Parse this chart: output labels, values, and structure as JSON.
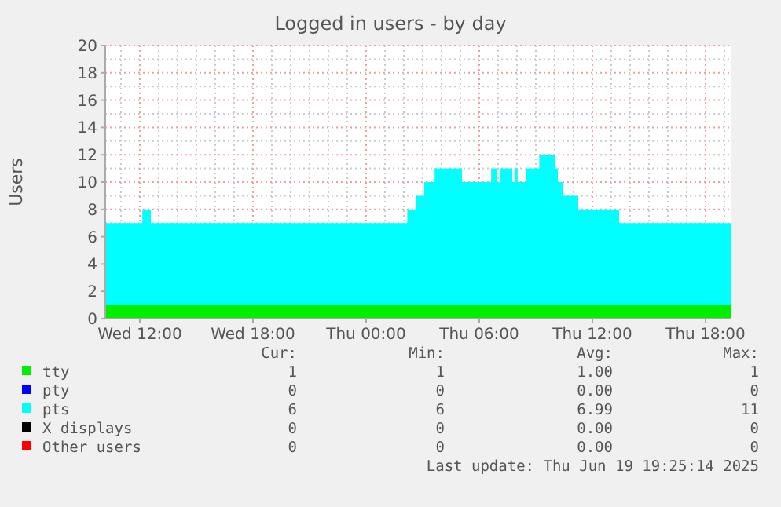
{
  "chart_data": {
    "type": "area",
    "title": "Logged in users - by day",
    "ylabel": "Users",
    "stacked": true,
    "grid": true,
    "legend": "bottom",
    "x": [
      "2025-06-18T10:10",
      "2025-06-18T12:08",
      "2025-06-18T12:35",
      "2025-06-19T02:11",
      "2025-06-19T02:38",
      "2025-06-19T03:05",
      "2025-06-19T03:38",
      "2025-06-19T05:05",
      "2025-06-19T06:38",
      "2025-06-19T06:55",
      "2025-06-19T07:05",
      "2025-06-19T07:45",
      "2025-06-19T07:52",
      "2025-06-19T08:02",
      "2025-06-19T08:28",
      "2025-06-19T09:11",
      "2025-06-19T10:00",
      "2025-06-19T10:10",
      "2025-06-19T10:25",
      "2025-06-19T11:15",
      "2025-06-19T13:25",
      "2025-06-19T19:20"
    ],
    "series": [
      {
        "name": "tty",
        "color": "#00ee00",
        "values": [
          1,
          1,
          1,
          1,
          1,
          1,
          1,
          1,
          1,
          1,
          1,
          1,
          1,
          1,
          1,
          1,
          1,
          1,
          1,
          1,
          1,
          1
        ]
      },
      {
        "name": "pty",
        "color": "#0000ff",
        "values": [
          null,
          null,
          null,
          null,
          null,
          null,
          null,
          null,
          null,
          null,
          null,
          null,
          null,
          null,
          null,
          null,
          null,
          null,
          null,
          null,
          null,
          null
        ]
      },
      {
        "name": "pts",
        "color": "#00ffff",
        "values": [
          6,
          7,
          6,
          7,
          8,
          9,
          10,
          9,
          10,
          9,
          10,
          9,
          10,
          9,
          10,
          11,
          10,
          9,
          8,
          7,
          6,
          6
        ]
      },
      {
        "name": "X displays",
        "color": "#000000",
        "values": [
          null,
          null,
          null,
          null,
          null,
          null,
          null,
          null,
          null,
          null,
          null,
          null,
          null,
          null,
          null,
          null,
          null,
          null,
          null,
          null,
          null,
          null
        ]
      },
      {
        "name": "Other users",
        "color": "#ff0000",
        "values": [
          null,
          null,
          null,
          null,
          null,
          null,
          null,
          null,
          null,
          null,
          null,
          null,
          null,
          null,
          null,
          null,
          null,
          null,
          null,
          null,
          null,
          null
        ]
      }
    ],
    "xlim": [
      "2025-06-18T10:10",
      "2025-06-19T19:20"
    ],
    "xticks": [
      {
        "value": "2025-06-18T12:00",
        "label": "Wed 12:00"
      },
      {
        "value": "2025-06-18T18:00",
        "label": "Wed 18:00"
      },
      {
        "value": "2025-06-19T00:00",
        "label": "Thu 00:00"
      },
      {
        "value": "2025-06-19T06:00",
        "label": "Thu 06:00"
      },
      {
        "value": "2025-06-19T12:00",
        "label": "Thu 12:00"
      },
      {
        "value": "2025-06-19T18:00",
        "label": "Thu 18:00"
      }
    ],
    "ylim": [
      0,
      20
    ],
    "yticks": [
      0,
      2,
      4,
      6,
      8,
      10,
      12,
      14,
      16,
      18,
      20
    ],
    "annotations": [
      "Cur:",
      "Min:",
      "Avg:",
      "Max:",
      "1",
      "1",
      "1.00",
      "1",
      "0",
      "0",
      "0.00",
      "0",
      "6",
      "6",
      "6.99",
      "11",
      "0",
      "0",
      "0.00",
      "0",
      "0",
      "0",
      "0.00",
      "0",
      "Last update: Thu Jun 19 19:25:14 2025"
    ]
  }
}
